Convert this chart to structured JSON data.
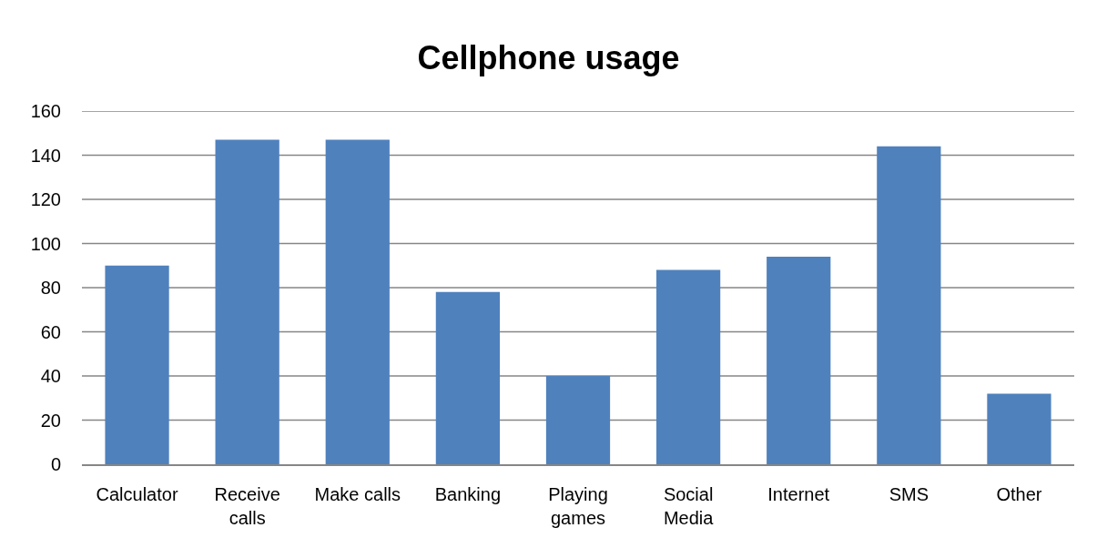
{
  "chart_data": {
    "type": "bar",
    "title": "Cellphone usage",
    "categories": [
      "Calculator",
      "Receive calls",
      "Make calls",
      "Banking",
      "Playing games",
      "Social Media",
      "Internet",
      "SMS",
      "Other"
    ],
    "values": [
      90,
      147,
      147,
      78,
      40,
      88,
      94,
      144,
      32
    ],
    "color": "#4f81bd",
    "ylim": [
      0,
      160
    ],
    "yticks": [
      0,
      20,
      40,
      60,
      80,
      100,
      120,
      140,
      160
    ],
    "grid": "y"
  }
}
